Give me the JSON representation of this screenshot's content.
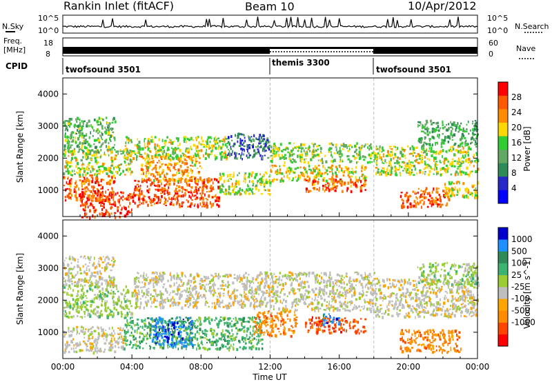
{
  "header": {
    "title": "Rankin Inlet (fitACF)",
    "beam": "Beam 10",
    "date": "10/Apr/2012"
  },
  "noise_panel": {
    "left_label": "N.Sky",
    "right_label": "N.Search",
    "ytick_top": "10^5",
    "ytick_bottom": "10^0"
  },
  "freq_panel": {
    "left_label_line1": "Freq.",
    "left_label_line2": "[MHz]",
    "right_label": "Nave",
    "left_tick_top": "18",
    "left_tick_bottom": "8",
    "right_tick_top": "60",
    "right_tick_bottom": "0"
  },
  "cpid": {
    "label": "CPID",
    "segments": [
      {
        "start_h": 0,
        "end_h": 12,
        "text": "twofsound 3501"
      },
      {
        "start_h": 12,
        "end_h": 18,
        "text": "themis 3300"
      },
      {
        "start_h": 18,
        "end_h": 24,
        "text": "twofsound 3501"
      }
    ]
  },
  "colors": {
    "power": [
      "#0000ff",
      "#2828c8",
      "#2e8b57",
      "#62a862",
      "#32cd32",
      "#ffd700",
      "#ff8c00",
      "#ff5a00",
      "#ff0000"
    ],
    "velocity": [
      "#ff0000",
      "#ff4500",
      "#ff8c00",
      "#ffa500",
      "#bebebe",
      "#9acd32",
      "#3cb371",
      "#2e8b57",
      "#1e90ff",
      "#0000cd"
    ]
  },
  "chart_data": [
    {
      "type": "heatmap",
      "name": "power",
      "ylabel": "Slant Range [km]",
      "xlabel": "Time UT",
      "x_ticks": [
        "00:00",
        "04:00",
        "08:00",
        "12:00",
        "16:00",
        "20:00",
        "00:00"
      ],
      "x_range_h": [
        0,
        24
      ],
      "ylim": [
        180,
        4500
      ],
      "y_ticks": [
        1000,
        2000,
        3000,
        4000
      ],
      "colorbar": {
        "label": "Power [dB]",
        "range": [
          0,
          32
        ],
        "ticks": [
          4,
          8,
          12,
          16,
          20,
          24,
          28
        ]
      },
      "blobs": [
        {
          "t0": 1.0,
          "t1": 4.0,
          "r0": 150,
          "r1": 1000,
          "v": 29
        },
        {
          "t0": 0.0,
          "t1": 3.0,
          "r0": 700,
          "r1": 1500,
          "v": 26
        },
        {
          "t0": 4.0,
          "t1": 9.0,
          "r0": 500,
          "r1": 1400,
          "v": 27
        },
        {
          "t0": 4.5,
          "t1": 8.0,
          "r0": 1300,
          "r1": 2100,
          "v": 22
        },
        {
          "t0": 0.0,
          "t1": 4.0,
          "r0": 1500,
          "r1": 2300,
          "v": 18
        },
        {
          "t0": 0.0,
          "t1": 3.0,
          "r0": 2200,
          "r1": 3300,
          "v": 14
        },
        {
          "t0": 3.5,
          "t1": 9.5,
          "r0": 2000,
          "r1": 2700,
          "v": 18
        },
        {
          "t0": 9.0,
          "t1": 12.0,
          "r0": 900,
          "r1": 1600,
          "v": 17
        },
        {
          "t0": 9.5,
          "t1": 12.0,
          "r0": 2000,
          "r1": 2800,
          "v": 8
        },
        {
          "t0": 12.0,
          "t1": 18.0,
          "r0": 1900,
          "r1": 2500,
          "v": 16
        },
        {
          "t0": 12.0,
          "t1": 17.5,
          "r0": 1300,
          "r1": 1800,
          "v": 20
        },
        {
          "t0": 14.0,
          "t1": 17.5,
          "r0": 1000,
          "r1": 1400,
          "v": 26
        },
        {
          "t0": 18.0,
          "t1": 24.0,
          "r0": 1500,
          "r1": 2400,
          "v": 18
        },
        {
          "t0": 19.5,
          "t1": 22.5,
          "r0": 500,
          "r1": 1100,
          "v": 26
        },
        {
          "t0": 22.0,
          "t1": 24.0,
          "r0": 800,
          "r1": 1300,
          "v": 20
        },
        {
          "t0": 20.5,
          "t1": 24.0,
          "r0": 2400,
          "r1": 3200,
          "v": 12
        }
      ]
    },
    {
      "type": "heatmap",
      "name": "velocity",
      "ylabel": "Slant Range [km]",
      "xlabel": "Time UT",
      "x_ticks": [
        "00:00",
        "04:00",
        "08:00",
        "12:00",
        "16:00",
        "20:00",
        "00:00"
      ],
      "x_range_h": [
        0,
        24
      ],
      "ylim": [
        180,
        4500
      ],
      "y_ticks": [
        1000,
        2000,
        3000,
        4000
      ],
      "colorbar": {
        "label": "Velocity [m s^-1]",
        "ticks": [
          1000,
          500,
          100,
          25,
          -25,
          -100,
          -500,
          -1000
        ]
      },
      "blobs": [
        {
          "t0": 0.0,
          "t1": 3.5,
          "r0": 400,
          "r1": 1200,
          "v": 4
        },
        {
          "t0": 3.5,
          "t1": 11.5,
          "r0": 500,
          "r1": 1500,
          "v": 6
        },
        {
          "t0": 5.0,
          "t1": 7.5,
          "r0": 600,
          "r1": 1500,
          "v": 8
        },
        {
          "t0": 0.0,
          "t1": 4.0,
          "r0": 1500,
          "r1": 2500,
          "v": 5
        },
        {
          "t0": 4.0,
          "t1": 12.0,
          "r0": 1800,
          "r1": 2900,
          "v": 4
        },
        {
          "t0": 0.0,
          "t1": 3.0,
          "r0": 2500,
          "r1": 3400,
          "v": 4
        },
        {
          "t0": 11.0,
          "t1": 13.5,
          "r0": 900,
          "r1": 1700,
          "v": 2
        },
        {
          "t0": 12.0,
          "t1": 18.0,
          "r0": 1700,
          "r1": 2900,
          "v": 4
        },
        {
          "t0": 14.0,
          "t1": 17.5,
          "r0": 1000,
          "r1": 1500,
          "v": 1
        },
        {
          "t0": 15.0,
          "t1": 16.0,
          "r0": 1250,
          "r1": 1600,
          "v": 8
        },
        {
          "t0": 18.0,
          "t1": 24.0,
          "r0": 1500,
          "r1": 2700,
          "v": 4
        },
        {
          "t0": 19.5,
          "t1": 23.0,
          "r0": 400,
          "r1": 1100,
          "v": 2
        },
        {
          "t0": 20.5,
          "t1": 24.0,
          "r0": 2500,
          "r1": 3200,
          "v": 5
        }
      ]
    }
  ]
}
